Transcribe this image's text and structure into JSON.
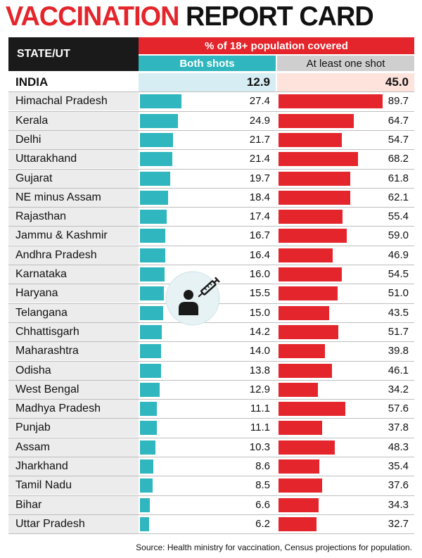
{
  "title": {
    "part1": "VACCINATION",
    "part2": "REPORT CARD"
  },
  "header": {
    "state_label": "STATE/UT",
    "pct_label": "% of 18+ population covered",
    "both_label": "Both shots",
    "one_label": "At least one shot"
  },
  "colors": {
    "red": "#e4252b",
    "teal": "#2fb6be"
  },
  "icons": [
    "person-icon",
    "syringe-icon"
  ],
  "source": "Source: Health ministry for vaccination, Census projections for population.",
  "chart_data": {
    "type": "table",
    "columns": [
      "STATE/UT",
      "Both shots",
      "At least one shot"
    ],
    "india": {
      "name": "INDIA",
      "both": "12.9",
      "one": "45.0"
    },
    "rows": [
      {
        "name": "Himachal Pradesh",
        "both": "27.4",
        "one": "89.7"
      },
      {
        "name": "Kerala",
        "both": "24.9",
        "one": "64.7"
      },
      {
        "name": "Delhi",
        "both": "21.7",
        "one": "54.7"
      },
      {
        "name": "Uttarakhand",
        "both": "21.4",
        "one": "68.2"
      },
      {
        "name": "Gujarat",
        "both": "19.7",
        "one": "61.8"
      },
      {
        "name": "NE minus Assam",
        "both": "18.4",
        "one": "62.1"
      },
      {
        "name": "Rajasthan",
        "both": "17.4",
        "one": "55.4"
      },
      {
        "name": "Jammu & Kashmir",
        "both": "16.7",
        "one": "59.0"
      },
      {
        "name": "Andhra Pradesh",
        "both": "16.4",
        "one": "46.9"
      },
      {
        "name": "Karnataka",
        "both": "16.0",
        "one": "54.5"
      },
      {
        "name": "Haryana",
        "both": "15.5",
        "one": "51.0"
      },
      {
        "name": "Telangana",
        "both": "15.0",
        "one": "43.5"
      },
      {
        "name": "Chhattisgarh",
        "both": "14.2",
        "one": "51.7"
      },
      {
        "name": "Maharashtra",
        "both": "14.0",
        "one": "39.8"
      },
      {
        "name": "Odisha",
        "both": "13.8",
        "one": "46.1"
      },
      {
        "name": "West Bengal",
        "both": "12.9",
        "one": "34.2"
      },
      {
        "name": "Madhya Pradesh",
        "both": "11.1",
        "one": "57.6"
      },
      {
        "name": "Punjab",
        "both": "11.1",
        "one": "37.8"
      },
      {
        "name": "Assam",
        "both": "10.3",
        "one": "48.3"
      },
      {
        "name": "Jharkhand",
        "both": "8.6",
        "one": "35.4"
      },
      {
        "name": "Tamil Nadu",
        "both": "8.5",
        "one": "37.6"
      },
      {
        "name": "Bihar",
        "both": "6.6",
        "one": "34.3"
      },
      {
        "name": "Uttar Pradesh",
        "both": "6.2",
        "one": "32.7"
      }
    ]
  }
}
